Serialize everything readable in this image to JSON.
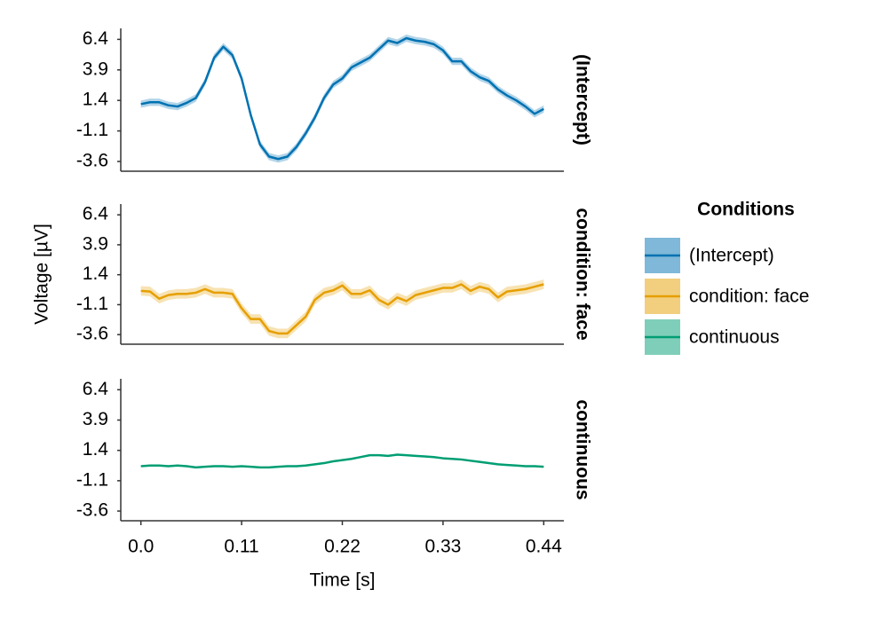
{
  "chart_data": [
    {
      "type": "line",
      "facet_label": "(Intercept)",
      "legend_title": "Conditions",
      "x": [
        0,
        0.01,
        0.02,
        0.03,
        0.04,
        0.05,
        0.06,
        0.07,
        0.08,
        0.09,
        0.1,
        0.11,
        0.12,
        0.13,
        0.14,
        0.15,
        0.16,
        0.17,
        0.18,
        0.19,
        0.2,
        0.21,
        0.22,
        0.23,
        0.24,
        0.25,
        0.26,
        0.27,
        0.28,
        0.29,
        0.3,
        0.31,
        0.32,
        0.33,
        0.34,
        0.35,
        0.36,
        0.37,
        0.38,
        0.39,
        0.4,
        0.41,
        0.42,
        0.43,
        0.44
      ],
      "series": [
        {
          "name": "(Intercept)",
          "color": "#0072b2",
          "ci": 0.3,
          "values": [
            1.1,
            1.25,
            1.25,
            1.0,
            0.9,
            1.2,
            1.6,
            2.9,
            4.9,
            5.8,
            5.1,
            3.2,
            0.2,
            -2.2,
            -3.2,
            -3.4,
            -3.2,
            -2.4,
            -1.3,
            0.0,
            1.6,
            2.7,
            3.2,
            4.1,
            4.5,
            4.9,
            5.6,
            6.3,
            6.1,
            6.5,
            6.3,
            6.2,
            6.0,
            5.5,
            4.6,
            4.6,
            3.8,
            3.3,
            3.0,
            2.3,
            1.8,
            1.4,
            0.9,
            0.3,
            0.7
          ]
        }
      ],
      "xlim": [
        -0.022,
        0.462
      ],
      "ylim": [
        -4.4,
        7.3
      ],
      "yticks": [
        6.4,
        3.9,
        1.4,
        -1.1,
        -3.6
      ]
    },
    {
      "type": "line",
      "facet_label": "condition: face",
      "y_label": "Voltage [µV]",
      "x": [
        0,
        0.01,
        0.02,
        0.03,
        0.04,
        0.05,
        0.06,
        0.07,
        0.08,
        0.09,
        0.1,
        0.11,
        0.12,
        0.13,
        0.14,
        0.15,
        0.16,
        0.17,
        0.18,
        0.19,
        0.2,
        0.21,
        0.22,
        0.23,
        0.24,
        0.25,
        0.26,
        0.27,
        0.28,
        0.29,
        0.3,
        0.31,
        0.32,
        0.33,
        0.34,
        0.35,
        0.36,
        0.37,
        0.38,
        0.39,
        0.4,
        0.41,
        0.42,
        0.43,
        0.44
      ],
      "series": [
        {
          "name": "condition: face",
          "color": "#e69f00",
          "ci": 0.4,
          "values": [
            0.05,
            0.0,
            -0.6,
            -0.3,
            -0.2,
            -0.2,
            -0.1,
            0.2,
            -0.1,
            -0.1,
            -0.2,
            -1.4,
            -2.3,
            -2.3,
            -3.3,
            -3.5,
            -3.5,
            -2.8,
            -2.1,
            -0.7,
            -0.1,
            0.1,
            0.5,
            -0.2,
            -0.2,
            0.1,
            -0.7,
            -1.1,
            -0.5,
            -0.8,
            -0.3,
            -0.1,
            0.1,
            0.3,
            0.3,
            0.6,
            0.05,
            0.4,
            0.2,
            -0.5,
            0.0,
            0.1,
            0.2,
            0.4,
            0.6
          ]
        }
      ],
      "xlim": [
        -0.022,
        0.462
      ],
      "ylim": [
        -4.4,
        7.3
      ],
      "yticks": [
        6.4,
        3.9,
        1.4,
        -1.1,
        -3.6
      ]
    },
    {
      "type": "line",
      "facet_label": "continuous",
      "x_label": "Time [s]",
      "x": [
        0,
        0.01,
        0.02,
        0.03,
        0.04,
        0.05,
        0.06,
        0.07,
        0.08,
        0.09,
        0.1,
        0.11,
        0.12,
        0.13,
        0.14,
        0.15,
        0.16,
        0.17,
        0.18,
        0.19,
        0.2,
        0.21,
        0.22,
        0.23,
        0.24,
        0.25,
        0.26,
        0.27,
        0.28,
        0.29,
        0.3,
        0.31,
        0.32,
        0.33,
        0.34,
        0.35,
        0.36,
        0.37,
        0.38,
        0.39,
        0.4,
        0.41,
        0.42,
        0.43,
        0.44
      ],
      "series": [
        {
          "name": "continuous",
          "color": "#009e73",
          "ci": 0.05,
          "values": [
            0.1,
            0.15,
            0.15,
            0.1,
            0.15,
            0.1,
            0.0,
            0.05,
            0.1,
            0.1,
            0.05,
            0.1,
            0.05,
            0.0,
            0.0,
            0.05,
            0.1,
            0.1,
            0.15,
            0.25,
            0.35,
            0.5,
            0.6,
            0.7,
            0.85,
            1.0,
            1.0,
            0.95,
            1.05,
            1.0,
            0.95,
            0.9,
            0.85,
            0.75,
            0.7,
            0.65,
            0.55,
            0.45,
            0.35,
            0.25,
            0.2,
            0.15,
            0.1,
            0.1,
            0.05
          ]
        }
      ],
      "xlim": [
        -0.022,
        0.462
      ],
      "ylim": [
        -4.4,
        7.3
      ],
      "yticks": [
        6.4,
        3.9,
        1.4,
        -1.1,
        -3.6
      ],
      "xticks": [
        {
          "value": 0,
          "label": "0.0"
        },
        0.11,
        0.22,
        0.33,
        0.44
      ]
    }
  ]
}
